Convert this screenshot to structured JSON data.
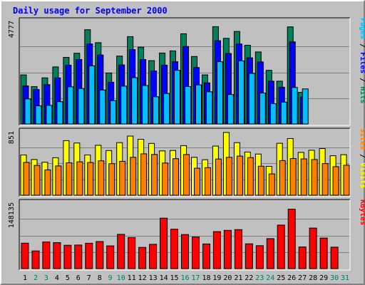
{
  "chart_data": {
    "type": "bar",
    "title": "Daily usage for September 2000",
    "days": [
      "1",
      "2",
      "3",
      "4",
      "5",
      "6",
      "7",
      "8",
      "9",
      "10",
      "11",
      "12",
      "13",
      "14",
      "15",
      "16",
      "17",
      "18",
      "19",
      "20",
      "21",
      "22",
      "23",
      "24",
      "25",
      "26",
      "27",
      "28",
      "29",
      "30",
      "31"
    ],
    "weekend_days": [
      "2",
      "3",
      "9",
      "10",
      "16",
      "17",
      "23",
      "24",
      "30",
      "31"
    ],
    "panels": [
      {
        "id": "hits_panel",
        "max_label": "4777",
        "ymax": 4777,
        "series": [
          {
            "name": "Hits",
            "color": "#00805c",
            "values": [
              2270,
              1730,
              2130,
              2640,
              3080,
              3270,
              4360,
              3760,
              2360,
              3140,
              4040,
              3550,
              2930,
              3280,
              3380,
              4170,
              3120,
              2270,
              4500,
              3960,
              4280,
              3640,
              3330,
              2480,
              1980,
              4490,
              1460,
              0,
              0,
              0,
              0
            ]
          },
          {
            "name": "Files",
            "color": "#0000ff",
            "values": [
              1760,
              1590,
              1820,
              2130,
              2720,
              2980,
              3700,
              3190,
              1930,
              2730,
              3440,
              2980,
              2450,
              2720,
              2880,
              3580,
              2610,
              1900,
              3850,
              3260,
              3700,
              3060,
              2870,
              1980,
              1700,
              3800,
              1250,
              0,
              0,
              0,
              0
            ]
          },
          {
            "name": "Pages",
            "color": "#00c0ff",
            "values": [
              1160,
              840,
              860,
              1030,
              1720,
              1640,
              2690,
              1570,
              1080,
              1750,
              2140,
              1780,
              1260,
              1410,
              2480,
              1730,
              1810,
              1490,
              2880,
              1360,
              2920,
              2340,
              1430,
              940,
              1010,
              1690,
              1620,
              0,
              0,
              0,
              0
            ]
          }
        ],
        "legend": [
          {
            "text": "Pages",
            "color": "#00c0ff"
          },
          {
            "text": " / ",
            "color": "#000000"
          },
          {
            "text": "Files",
            "color": "#0000ff"
          },
          {
            "text": " / ",
            "color": "#000000"
          },
          {
            "text": "Hits",
            "color": "#00805c"
          }
        ]
      },
      {
        "id": "visits_panel",
        "max_label": "851",
        "ymax": 851,
        "series": [
          {
            "name": "Visits",
            "color": "#ffff00",
            "values": [
              534,
              475,
              438,
              497,
              724,
              693,
              534,
              663,
              593,
              698,
              785,
              742,
              687,
              588,
              594,
              658,
              503,
              471,
              652,
              833,
              698,
              573,
              547,
              383,
              689,
              752,
              568,
              597,
              619,
              524,
              538
            ]
          },
          {
            "name": "Sites",
            "color": "#ff8000",
            "values": [
              436,
              396,
              337,
              389,
              430,
              443,
              435,
              457,
              419,
              450,
              503,
              549,
              541,
              427,
              485,
              540,
              358,
              366,
              480,
              503,
              519,
              499,
              385,
              283,
              460,
              487,
              482,
              474,
              420,
              379,
              398
            ]
          }
        ],
        "legend": [
          {
            "text": "Sites",
            "color": "#ff8000"
          },
          {
            "text": " / ",
            "color": "#000000"
          },
          {
            "text": "Visits",
            "color": "#ffff00"
          }
        ]
      },
      {
        "id": "kbytes_panel",
        "max_label": "148135",
        "ymax": 148135,
        "series": [
          {
            "name": "KBytes",
            "color": "#ff0000",
            "values": [
              56800,
              39500,
              59500,
              58200,
              52300,
              52800,
              56700,
              60500,
              50800,
              76600,
              69400,
              47500,
              54300,
              112800,
              88100,
              76100,
              70600,
              55100,
              82600,
              85600,
              87200,
              55400,
              51300,
              67100,
              97300,
              132900,
              48500,
              90600,
              68300,
              48000,
              0
            ]
          }
        ],
        "legend": [
          {
            "text": "KBytes",
            "color": "#ff0000"
          }
        ]
      }
    ],
    "colors": {
      "plot_bg": "#c0c0c0",
      "grid": "#808080",
      "weekday_label": "#000000",
      "weekend_label": "#00805c"
    }
  }
}
